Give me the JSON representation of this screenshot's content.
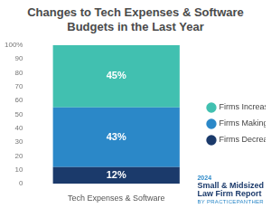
{
  "chart_data": {
    "type": "bar",
    "title": "Changes to Tech Expenses & Software Budgets in the Last Year",
    "categories": [
      "Tech Expenses & Software"
    ],
    "series": [
      {
        "name": "Firms Decreasing Budget",
        "color": "#1b3a6b",
        "values": [
          12
        ],
        "value_labels": [
          "12%"
        ]
      },
      {
        "name": "Firms Making No Change",
        "color": "#2b88c8",
        "values": [
          43
        ],
        "value_labels": [
          "43%"
        ]
      },
      {
        "name": "Firms Increasing Budget",
        "color": "#41c0b0",
        "values": [
          45
        ],
        "value_labels": [
          "45%"
        ]
      }
    ],
    "stacked": true,
    "data_labels": true,
    "legend": "right",
    "grid": false,
    "ylim": [
      0,
      100
    ],
    "yticks": [
      0,
      10,
      20,
      30,
      40,
      50,
      60,
      70,
      80,
      90,
      {
        "value": 100,
        "label": "100%"
      }
    ],
    "annotations": [
      "2024",
      "Small & Midsized",
      "Law Firm Report",
      "BY PRACTICEPANTHER"
    ]
  }
}
